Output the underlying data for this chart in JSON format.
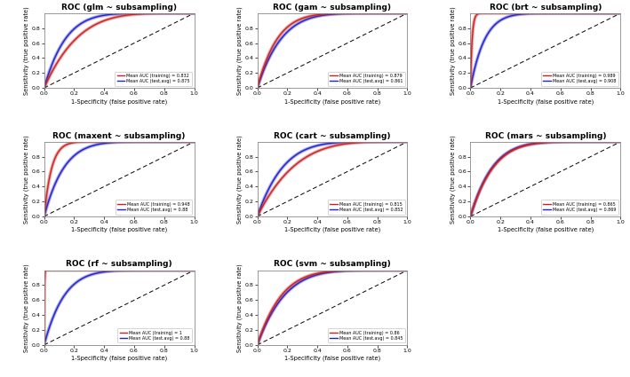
{
  "subplots": [
    {
      "title": "ROC (glm ~ subsampling)",
      "train_auc": 0.832,
      "test_auc": 0.875,
      "legend_train": "Mean AUC (training) = 0.832",
      "legend_test": "Mean AUC (test.avg) = 0.875",
      "train_k": 4.5,
      "test_k": 7.0
    },
    {
      "title": "ROC (gam ~ subsampling)",
      "train_auc": 0.879,
      "test_auc": 0.861,
      "legend_train": "Mean AUC (training) = 0.879",
      "legend_test": "Mean AUC (test.avg) = 0.861",
      "train_k": 7.5,
      "test_k": 6.2
    },
    {
      "title": "ROC (brt ~ subsampling)",
      "train_auc": 0.989,
      "test_auc": 0.908,
      "legend_train": "Mean AUC (training) = 0.989",
      "legend_test": "Mean AUC (test.avg) = 0.908",
      "train_k": 90.0,
      "test_k": 10.5
    },
    {
      "title": "ROC (maxent ~ subsampling)",
      "train_auc": 0.948,
      "test_auc": 0.88,
      "legend_train": "Mean AUC (training) = 0.948",
      "legend_test": "Mean AUC (test.avg) = 0.88",
      "train_k": 20.0,
      "test_k": 7.5
    },
    {
      "title": "ROC (cart ~ subsampling)",
      "train_auc": 0.815,
      "test_auc": 0.852,
      "legend_train": "Mean AUC (training) = 0.815",
      "legend_test": "Mean AUC (test.avg) = 0.852",
      "train_k": 4.0,
      "test_k": 5.8
    },
    {
      "title": "ROC (mars ~ subsampling)",
      "train_auc": 0.865,
      "test_auc": 0.869,
      "legend_train": "Mean AUC (training) = 0.865",
      "legend_test": "Mean AUC (test.avg) = 0.869",
      "train_k": 6.5,
      "test_k": 6.8
    },
    {
      "title": "ROC (rf ~ subsampling)",
      "train_auc": 1.0,
      "test_auc": 0.88,
      "legend_train": "Mean AUC (training) = 1",
      "legend_test": "Mean AUC (test.avg) = 0.88",
      "train_k": 999.0,
      "test_k": 7.5
    },
    {
      "title": "ROC (svm ~ subsampling)",
      "train_auc": 0.86,
      "test_auc": 0.845,
      "legend_train": "Mean AUC (training) = 0.86",
      "legend_test": "Mean AUC (test.avg) = 0.845",
      "train_k": 6.2,
      "test_k": 5.5
    }
  ],
  "xlabel": "1-Specificity (false positive rate)",
  "ylabel": "Sensitivity (true positive rate)",
  "train_color": "#CC2222",
  "test_color": "#2222CC",
  "background_color": "#ffffff",
  "title_fontsize": 6.5,
  "label_fontsize": 4.8,
  "tick_fontsize": 4.5,
  "legend_fontsize": 3.5,
  "figsize": [
    7.09,
    4.25
  ],
  "dpi": 100
}
